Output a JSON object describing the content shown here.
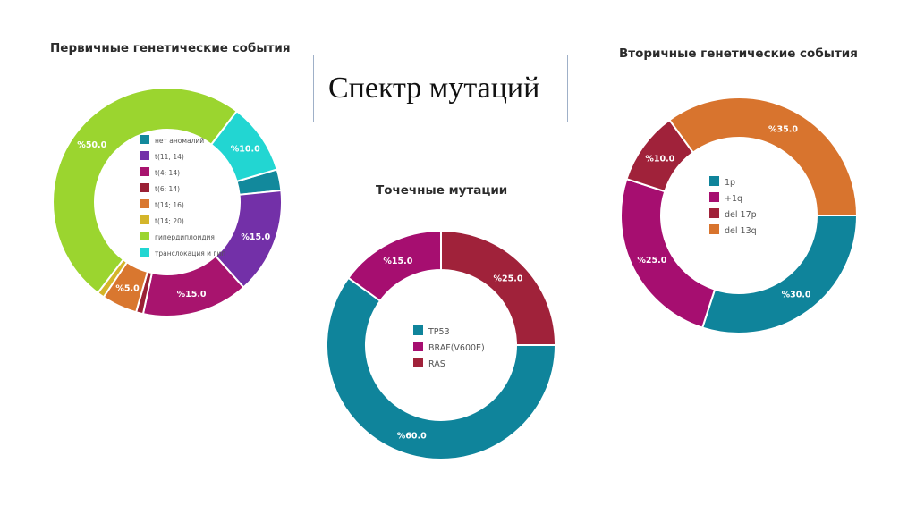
{
  "slide_title": "Спектр мутаций",
  "chart_data": [
    {
      "type": "pie",
      "title": "Первичные генетические события",
      "categories": [
        "нет аномалий",
        "t(11; 14)",
        "t(4; 14)",
        "t(6; 14)",
        "t(14; 16)",
        "t(14; 20)",
        "гипердиплоидия",
        "транслокация и гип"
      ],
      "values": [
        3,
        15,
        15,
        1,
        5,
        1,
        50,
        10
      ],
      "value_labels": [
        "",
        "%15.0",
        "%15.0",
        "",
        "%5.0",
        "",
        "%50.0",
        "%10.0"
      ],
      "colors": [
        "#12899c",
        "#7330a8",
        "#a8146e",
        "#9a2035",
        "#d9772f",
        "#d4b52a",
        "#9bd52f",
        "#22d6d2"
      ],
      "legend_position": "center"
    },
    {
      "type": "pie",
      "title": "Точечные мутации",
      "categories": [
        "TP53",
        "BRAF(V600E)",
        "RAS"
      ],
      "values": [
        60,
        15,
        25
      ],
      "value_labels": [
        "%60.0",
        "%15.0",
        "%25.0"
      ],
      "colors": [
        "#0f849b",
        "#a60e70",
        "#a0223a"
      ],
      "legend_position": "center"
    },
    {
      "type": "pie",
      "title": "Вторичные генетические события",
      "categories": [
        "1p",
        "+1q",
        "del 17p",
        "del 13q"
      ],
      "values": [
        30,
        25,
        10,
        35
      ],
      "value_labels": [
        "%30.0",
        "%25.0",
        "%10.0",
        "%35.0"
      ],
      "colors": [
        "#0f849b",
        "#a60e70",
        "#a0223a",
        "#d8742e"
      ],
      "legend_position": "center"
    }
  ]
}
